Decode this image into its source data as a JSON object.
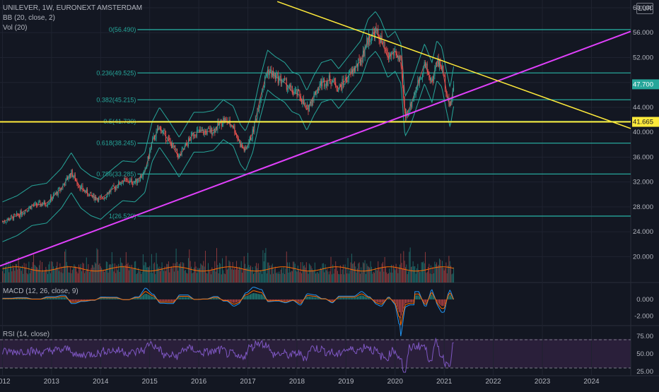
{
  "header": {
    "symbol_line": "UNILEVER, 1W, EURONEXT AMSTERDAM",
    "bb_label": "BB (20, close, 2)",
    "vol_label": "Vol (20)",
    "currency": "EUR"
  },
  "macd": {
    "label": "MACD (12, 26, close, 9)"
  },
  "rsi": {
    "label": "RSI (14, close)"
  },
  "colors": {
    "background": "#131722",
    "up": "#26a69a",
    "down": "#ef5350",
    "fib": "#26a69a",
    "bb": "#26a69a",
    "sma": "#ef5350",
    "trend_up": "#e040fb",
    "trend_down": "#ffeb3b",
    "support": "#ffeb3b",
    "macd": "#2196f3",
    "signal": "#ff6d00",
    "rsi": "#7e57c2",
    "grid": "#1f2330",
    "axis_text": "#b2b5be"
  },
  "chart_data": {
    "type": "candlestick",
    "title": "UNILEVER, 1W, EURONEXT AMSTERDAM",
    "x_ticks": [
      "2012",
      "2013",
      "2014",
      "2015",
      "2016",
      "2017",
      "2018",
      "2019",
      "2020",
      "2021",
      "2022",
      "2023",
      "2024"
    ],
    "x_range": [
      2011.95,
      2024.8
    ],
    "price": {
      "ylim": [
        17.5,
        61
      ],
      "y_ticks": [
        "60.000",
        "56.000",
        "52.000",
        "48.000",
        "44.000",
        "40.000",
        "36.000",
        "32.000",
        "28.000",
        "24.000",
        "20.000"
      ],
      "series": [
        {
          "t": 2012.0,
          "v": 25.6
        },
        {
          "t": 2012.3,
          "v": 26.6
        },
        {
          "t": 2012.6,
          "v": 28.2
        },
        {
          "t": 2012.9,
          "v": 28.6
        },
        {
          "t": 2013.2,
          "v": 31.0
        },
        {
          "t": 2013.4,
          "v": 33.5
        },
        {
          "t": 2013.6,
          "v": 31.0
        },
        {
          "t": 2013.8,
          "v": 29.8
        },
        {
          "t": 2014.0,
          "v": 29.2
        },
        {
          "t": 2014.2,
          "v": 30.6
        },
        {
          "t": 2014.45,
          "v": 32.2
        },
        {
          "t": 2014.7,
          "v": 32.0
        },
        {
          "t": 2014.9,
          "v": 33.5
        },
        {
          "t": 2015.05,
          "v": 38.5
        },
        {
          "t": 2015.2,
          "v": 40.8
        },
        {
          "t": 2015.4,
          "v": 38.5
        },
        {
          "t": 2015.6,
          "v": 36.0
        },
        {
          "t": 2015.75,
          "v": 38.0
        },
        {
          "t": 2015.9,
          "v": 40.0
        },
        {
          "t": 2016.1,
          "v": 40.0
        },
        {
          "t": 2016.3,
          "v": 40.3
        },
        {
          "t": 2016.5,
          "v": 42.0
        },
        {
          "t": 2016.7,
          "v": 41.0
        },
        {
          "t": 2016.85,
          "v": 38.0
        },
        {
          "t": 2016.95,
          "v": 37.0
        },
        {
          "t": 2017.1,
          "v": 40.0
        },
        {
          "t": 2017.25,
          "v": 45.5
        },
        {
          "t": 2017.4,
          "v": 50.0
        },
        {
          "t": 2017.55,
          "v": 49.0
        },
        {
          "t": 2017.75,
          "v": 48.0
        },
        {
          "t": 2017.9,
          "v": 46.5
        },
        {
          "t": 2018.05,
          "v": 46.0
        },
        {
          "t": 2018.2,
          "v": 43.5
        },
        {
          "t": 2018.35,
          "v": 46.0
        },
        {
          "t": 2018.5,
          "v": 48.0
        },
        {
          "t": 2018.7,
          "v": 48.5
        },
        {
          "t": 2018.85,
          "v": 47.0
        },
        {
          "t": 2019.0,
          "v": 48.5
        },
        {
          "t": 2019.15,
          "v": 50.0
        },
        {
          "t": 2019.3,
          "v": 51.5
        },
        {
          "t": 2019.45,
          "v": 55.0
        },
        {
          "t": 2019.6,
          "v": 56.2
        },
        {
          "t": 2019.7,
          "v": 55.0
        },
        {
          "t": 2019.85,
          "v": 52.0
        },
        {
          "t": 2020.0,
          "v": 53.0
        },
        {
          "t": 2020.12,
          "v": 51.0
        },
        {
          "t": 2020.2,
          "v": 42.5
        },
        {
          "t": 2020.3,
          "v": 44.0
        },
        {
          "t": 2020.45,
          "v": 47.5
        },
        {
          "t": 2020.6,
          "v": 51.0
        },
        {
          "t": 2020.75,
          "v": 48.0
        },
        {
          "t": 2020.85,
          "v": 51.5
        },
        {
          "t": 2020.95,
          "v": 50.5
        },
        {
          "t": 2021.05,
          "v": 46.5
        },
        {
          "t": 2021.12,
          "v": 44.0
        },
        {
          "t": 2021.2,
          "v": 47.7
        }
      ],
      "last_price": "47.700",
      "bb_width": 3.2
    },
    "fibonacci": [
      {
        "label": "0(56.490)",
        "value": 56.49
      },
      {
        "label": "0.236(49.525)",
        "value": 49.525
      },
      {
        "label": "0.382(45.215)",
        "value": 45.215
      },
      {
        "label": "0.5(41.730)",
        "value": 41.73
      },
      {
        "label": "0.618(38.245)",
        "value": 38.245
      },
      {
        "label": "0.786(33.285)",
        "value": 33.285
      },
      {
        "label": "1(26.520)",
        "value": 26.52
      }
    ],
    "fib_range": [
      2014.75,
      2024.8
    ],
    "support": {
      "value": 41.665,
      "label": "41.665"
    },
    "trendlines": [
      {
        "name": "rising",
        "from": [
          2011.95,
          18.5
        ],
        "to": [
          2024.8,
          56.2
        ]
      },
      {
        "name": "falling",
        "from": [
          2017.6,
          61.0
        ],
        "to": [
          2024.8,
          40.6
        ]
      }
    ],
    "volume": {
      "ylim": [
        0,
        1
      ]
    },
    "macd": {
      "ylim": [
        -3,
        1.7
      ],
      "y_ticks": [
        "0.000",
        "-2.000"
      ]
    },
    "rsi": {
      "ylim": [
        20,
        90
      ],
      "y_ticks": [
        "75.00",
        "50.00",
        "25.00"
      ],
      "bands": [
        70,
        30
      ]
    }
  }
}
